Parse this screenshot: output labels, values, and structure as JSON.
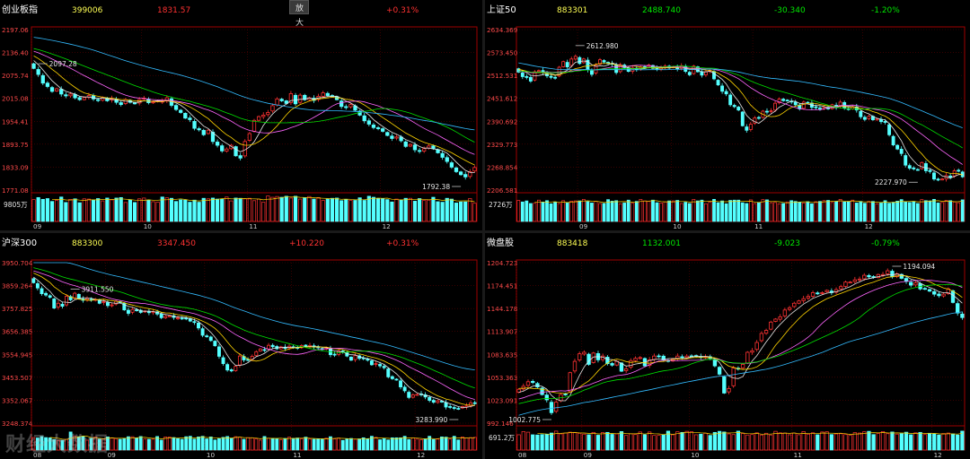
{
  "toolbar": {
    "zoom_label": "放大"
  },
  "watermark": "财经大数据",
  "colors": {
    "up": "#ff3232",
    "down": "#54ffff",
    "flat": "#e6e6e6",
    "grid": "#5a0000",
    "axis": "#a00000",
    "title_code": "#ffff54",
    "ma5": "#e6e6e6",
    "ma10": "#ffd400",
    "ma20": "#ff66ff",
    "ma30": "#00e000",
    "ma60": "#33bbff"
  },
  "chart_data": [
    {
      "type": "candlestick",
      "name": "创业板指",
      "code": "399006",
      "price": "1831.57",
      "change": "",
      "change_pct": "+0.31%",
      "trend": "up",
      "y_ticks": [
        "2197.06",
        "2136.40",
        "2075.74",
        "2015.08",
        "1954.41",
        "1893.75",
        "1833.09",
        "1771.08"
      ],
      "ylim": [
        1771.08,
        2197.06
      ],
      "x_ticks": [
        {
          "label": "09",
          "i": 0
        },
        {
          "label": "10",
          "i": 24
        },
        {
          "label": "11",
          "i": 47
        },
        {
          "label": "12",
          "i": 76
        }
      ],
      "high_label": "2097.28",
      "high_i": 1,
      "low_label": "1792.38",
      "low_i": 93,
      "volume_label": "9805万",
      "path": [
        2094,
        2078,
        2055,
        2046,
        2033,
        2040,
        2026,
        2021,
        2026,
        2016,
        2011,
        2017,
        2022,
        2013,
        2009,
        2016,
        2008,
        2014,
        2004,
        1998,
        2011,
        2004,
        2000,
        2011,
        2015,
        2003,
        2005,
        2008,
        2007,
        2016,
        1996,
        1985,
        1977,
        1962,
        1958,
        1935,
        1931,
        1918,
        1930,
        1900,
        1890,
        1875,
        1880,
        1890,
        1862,
        1856,
        1900,
        1921,
        1956,
        1966,
        1970,
        1977,
        1995,
        2013,
        2008,
        2001,
        2027,
        2000,
        2023,
        2011,
        2016,
        2009,
        2020,
        2029,
        2022,
        2019,
        2011,
        1993,
        1990,
        1998,
        1983,
        1970,
        1955,
        1946,
        1937,
        1934,
        1927,
        1916,
        1908,
        1912,
        1902,
        1887,
        1892,
        1878,
        1874,
        1881,
        1888,
        1881,
        1870,
        1858,
        1847,
        1832,
        1820,
        1812,
        1806,
        1820,
        1831
      ],
      "volumes": [
        0.84,
        0.92,
        0.85,
        0.88,
        0.77,
        0.81,
        0.94,
        0.73,
        0.85,
        0.87,
        0.72,
        0.87,
        0.86,
        0.83,
        0.88,
        0.79,
        0.9,
        0.83,
        0.9,
        0.92,
        0.73,
        0.83,
        0.73,
        0.87,
        0.9,
        0.82,
        0.76,
        0.74,
        0.94,
        0.91,
        0.89,
        0.77,
        0.83,
        0.82,
        0.74,
        0.82,
        0.74,
        0.89,
        0.87,
        0.9,
        0.86,
        0.86,
        0.94,
        0.79,
        0.9,
        0.89,
        0.87,
        0.89,
        0.8,
        0.86,
        0.74,
        0.98,
        0.93,
        0.96,
        0.93,
        0.97,
        0.9,
        0.97,
        0.86,
        0.9,
        0.96,
        0.86,
        0.92,
        0.81,
        0.86,
        0.89,
        0.9,
        0.8,
        0.85,
        0.81,
        0.81,
        0.91,
        0.81,
        0.97,
        0.93,
        0.87,
        0.87,
        0.84,
        0.75,
        0.86,
        0.83,
        0.89,
        0.89,
        0.78,
        0.88,
        0.81,
        0.82,
        0.93,
        0.76,
        0.74,
        0.89,
        0.86,
        0.71,
        0.75,
        0.75,
        0.88,
        0.7
      ]
    },
    {
      "type": "candlestick",
      "name": "上证50",
      "code": "883301",
      "price": "2488.740",
      "change": "-30.340",
      "change_pct": "-1.20%",
      "trend": "down",
      "y_ticks": [
        "2634.369",
        "2573.450",
        "2512.531",
        "2451.612",
        "2390.692",
        "2329.773",
        "2268.854",
        "2206.581"
      ],
      "ylim": [
        2206.581,
        2634.369
      ],
      "x_ticks": [
        {
          "label": "09",
          "i": 15
        },
        {
          "label": "10",
          "i": 38
        },
        {
          "label": "11",
          "i": 58
        },
        {
          "label": "12",
          "i": 85
        }
      ],
      "high_label": "2612.980",
      "high_i": 14,
      "low_label": "2227.970",
      "low_i": 98,
      "volume_label": "2726万",
      "path": [
        2521,
        2509,
        2507,
        2497,
        2522,
        2525,
        2520,
        2511,
        2507,
        2505,
        2534,
        2549,
        2535,
        2556,
        2563,
        2544,
        2556,
        2527,
        2515,
        2539,
        2554,
        2548,
        2544,
        2542,
        2520,
        2541,
        2533,
        2523,
        2532,
        2528,
        2534,
        2534,
        2540,
        2531,
        2530,
        2533,
        2537,
        2532,
        2535,
        2530,
        2538,
        2523,
        2514,
        2537,
        2522,
        2513,
        2522,
        2525,
        2503,
        2487,
        2470,
        2463,
        2434,
        2429,
        2420,
        2378,
        2366,
        2382,
        2399,
        2398,
        2417,
        2415,
        2418,
        2438,
        2449,
        2445,
        2445,
        2442,
        2434,
        2423,
        2441,
        2440,
        2427,
        2427,
        2423,
        2427,
        2423,
        2434,
        2427,
        2441,
        2425,
        2422,
        2429,
        2420,
        2402,
        2395,
        2403,
        2394,
        2396,
        2389,
        2387,
        2354,
        2327,
        2316,
        2304,
        2273,
        2265,
        2263,
        2261,
        2280,
        2258,
        2256,
        2236,
        2234,
        2236,
        2245,
        2241,
        2258,
        2258,
        2242
      ],
      "volumes": [
        0.81,
        0.75,
        0.79,
        0.69,
        0.7,
        0.82,
        0.74,
        0.8,
        0.68,
        0.75,
        0.69,
        0.8,
        0.72,
        0.78,
        0.79,
        0.79,
        0.85,
        0.76,
        0.71,
        0.77,
        0.69,
        0.69,
        0.84,
        0.78,
        0.8,
        0.68,
        0.71,
        0.82,
        0.7,
        0.77,
        0.85,
        0.79,
        0.78,
        0.82,
        0.72,
        0.71,
        0.75,
        0.79,
        0.79,
        0.81,
        0.69,
        0.74,
        0.69,
        0.85,
        0.79,
        0.82,
        0.68,
        0.75,
        0.85,
        0.72,
        0.79,
        0.68,
        0.81,
        0.82,
        0.82,
        0.72,
        0.69,
        0.83,
        0.69,
        0.73,
        0.84,
        0.83,
        0.72,
        0.73,
        0.68,
        0.69,
        0.75,
        0.8,
        0.77,
        0.74,
        0.71,
        0.76,
        0.68,
        0.76,
        0.77,
        0.8,
        0.81,
        0.73,
        0.77,
        0.85,
        0.75,
        0.76,
        0.82,
        0.71,
        0.77,
        0.7,
        0.77,
        0.77,
        0.68,
        0.71,
        0.8,
        0.7,
        0.74,
        0.78,
        0.84,
        0.75,
        0.73,
        0.77,
        0.69,
        0.84,
        0.8,
        0.79,
        0.85,
        0.71,
        0.73,
        0.81,
        0.8,
        0.75,
        0.72,
        0.83
      ]
    },
    {
      "type": "candlestick",
      "name": "沪深300",
      "code": "883300",
      "price": "3347.450",
      "change": "+10.220",
      "change_pct": "+0.31%",
      "trend": "up",
      "y_ticks": [
        "3950.704",
        "3859.264",
        "3757.825",
        "3656.385",
        "3554.945",
        "3453.507",
        "3352.067",
        "3248.374"
      ],
      "ylim": [
        3248.374,
        3950.704
      ],
      "x_ticks": [
        {
          "label": "08",
          "i": 0
        },
        {
          "label": "09",
          "i": 18
        },
        {
          "label": "10",
          "i": 42
        },
        {
          "label": "11",
          "i": 63
        },
        {
          "label": "12",
          "i": 93
        }
      ],
      "high_label": "3911.550",
      "high_i": 9,
      "low_label": "3283.990",
      "low_i": 103,
      "volume_label": "",
      "path": [
        3863,
        3840,
        3815,
        3809,
        3799,
        3752,
        3773,
        3760,
        3804,
        3788,
        3817,
        3793,
        3786,
        3794,
        3787,
        3790,
        3773,
        3780,
        3763,
        3766,
        3782,
        3779,
        3744,
        3729,
        3746,
        3744,
        3733,
        3739,
        3732,
        3736,
        3726,
        3710,
        3716,
        3718,
        3711,
        3709,
        3708,
        3705,
        3695,
        3690,
        3665,
        3633,
        3629,
        3610,
        3587,
        3541,
        3509,
        3481,
        3477,
        3497,
        3542,
        3525,
        3526,
        3541,
        3561,
        3573,
        3570,
        3589,
        3583,
        3574,
        3582,
        3575,
        3585,
        3582,
        3576,
        3588,
        3585,
        3588,
        3581,
        3578,
        3572,
        3578,
        3548,
        3548,
        3565,
        3559,
        3542,
        3524,
        3544,
        3532,
        3531,
        3524,
        3504,
        3509,
        3499,
        3491,
        3451,
        3443,
        3438,
        3407,
        3390,
        3361,
        3372,
        3374,
        3376,
        3363,
        3348,
        3340,
        3346,
        3341,
        3319,
        3319,
        3313,
        3312,
        3321,
        3324,
        3337,
        3337
      ],
      "volumes": [
        0.58,
        0.56,
        0.63,
        0.58,
        0.57,
        0.49,
        0.45,
        0.45,
        0.5,
        0.84,
        0.64,
        0.62,
        0.64,
        0.46,
        0.54,
        0.6,
        0.51,
        0.52,
        0.61,
        0.57,
        0.53,
        0.5,
        0.53,
        0.62,
        0.62,
        0.56,
        0.63,
        0.51,
        0.5,
        0.51,
        0.63,
        0.46,
        0.61,
        0.6,
        0.58,
        0.53,
        0.5,
        0.62,
        0.64,
        0.51,
        0.61,
        0.64,
        0.52,
        0.61,
        0.47,
        0.53,
        0.59,
        0.63,
        0.55,
        0.62,
        0.6,
        0.5,
        0.58,
        0.57,
        0.52,
        0.46,
        0.63,
        0.55,
        0.54,
        0.52,
        0.48,
        0.54,
        0.6,
        0.54,
        0.56,
        0.52,
        0.6,
        0.51,
        0.5,
        0.52,
        0.5,
        0.55,
        0.62,
        0.52,
        0.56,
        0.45,
        0.51,
        0.54,
        0.5,
        0.52,
        0.57,
        0.52,
        0.64,
        0.59,
        0.48,
        0.54,
        0.47,
        0.57,
        0.57,
        0.57,
        0.64,
        0.49,
        0.57,
        0.51,
        0.48,
        0.52,
        0.64,
        0.49,
        0.51,
        0.61,
        0.6,
        0.51,
        0.64,
        0.47,
        0.61,
        0.56,
        0.58,
        0.59
      ]
    },
    {
      "type": "candlestick",
      "name": "微盘股",
      "code": "883418",
      "price": "1132.001",
      "change": "-9.023",
      "change_pct": "-0.79%",
      "trend": "down",
      "y_ticks": [
        "1204.723",
        "1174.451",
        "1144.178",
        "1113.907",
        "1083.635",
        "1053.363",
        "1023.091",
        "992.146"
      ],
      "ylim": [
        992.146,
        1204.723
      ],
      "x_ticks": [
        {
          "label": "08",
          "i": 0
        },
        {
          "label": "09",
          "i": 14
        },
        {
          "label": "10",
          "i": 37
        },
        {
          "label": "11",
          "i": 59
        },
        {
          "label": "12",
          "i": 89
        }
      ],
      "high_label": "1194.094",
      "high_i": 80,
      "low_label": "1002.775",
      "low_i": 7,
      "volume_label": "691.2万",
      "path": [
        1037,
        1041,
        1047,
        1046,
        1040,
        1030,
        1023,
        1006,
        1020,
        1030,
        1030,
        1059,
        1074,
        1084,
        1086,
        1070,
        1085,
        1076,
        1081,
        1071,
        1069,
        1074,
        1061,
        1064,
        1075,
        1078,
        1079,
        1068,
        1076,
        1081,
        1081,
        1076,
        1074,
        1077,
        1081,
        1079,
        1081,
        1081,
        1081,
        1080,
        1080,
        1078,
        1068,
        1057,
        1032,
        1038,
        1065,
        1064,
        1070,
        1086,
        1088,
        1099,
        1111,
        1115,
        1126,
        1130,
        1133,
        1142,
        1145,
        1151,
        1154,
        1157,
        1160,
        1165,
        1164,
        1165,
        1168,
        1165,
        1169,
        1173,
        1179,
        1179,
        1182,
        1183,
        1188,
        1186,
        1185,
        1189,
        1189,
        1194,
        1186,
        1190,
        1184,
        1180,
        1175,
        1178,
        1170,
        1170,
        1167,
        1163,
        1161,
        1163,
        1170,
        1152,
        1138,
        1132
      ],
      "volumes": [
        0.71,
        0.86,
        0.83,
        0.71,
        0.7,
        0.72,
        0.74,
        0.79,
        0.88,
        0.75,
        0.79,
        0.83,
        0.82,
        0.78,
        0.74,
        0.71,
        0.82,
        0.69,
        0.81,
        0.82,
        0.73,
        0.75,
        0.86,
        0.68,
        0.76,
        0.72,
        0.84,
        0.71,
        0.84,
        0.68,
        0.68,
        0.7,
        0.88,
        0.71,
        0.85,
        0.82,
        0.87,
        0.85,
        0.71,
        0.74,
        0.78,
        0.68,
        0.82,
        0.87,
        0.84,
        0.75,
        0.72,
        0.88,
        0.77,
        0.7,
        0.72,
        0.8,
        0.7,
        0.78,
        0.7,
        0.87,
        0.8,
        0.79,
        0.71,
        0.79,
        0.71,
        0.86,
        0.74,
        0.8,
        0.71,
        0.84,
        0.85,
        0.72,
        0.75,
        0.76,
        0.72,
        0.68,
        0.81,
        0.79,
        0.85,
        0.87,
        0.72,
        0.77,
        0.86,
        0.76,
        0.84,
        0.74,
        0.76,
        0.83,
        0.71,
        0.8,
        0.82,
        0.72,
        0.78,
        0.75,
        0.7,
        0.77,
        0.79,
        0.75,
        0.7,
        0.88
      ]
    }
  ]
}
